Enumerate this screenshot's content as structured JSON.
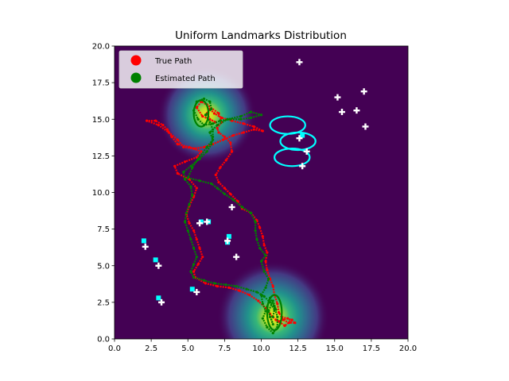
{
  "chart_data": {
    "type": "scatter",
    "title": "Uniform Landmarks Distribution",
    "xlabel": "",
    "ylabel": "",
    "xlim": [
      0,
      20
    ],
    "ylim": [
      0,
      20
    ],
    "xticks": [
      "0.0",
      "2.5",
      "5.0",
      "7.5",
      "10.0",
      "12.5",
      "15.0",
      "17.5",
      "20.0"
    ],
    "yticks": [
      "0.0",
      "2.5",
      "5.0",
      "7.5",
      "10.0",
      "12.5",
      "15.0",
      "17.5",
      "20.0"
    ],
    "grid": false,
    "legend_position": "upper-left",
    "background_color": "#440154",
    "heat_sources": [
      {
        "x": 6.3,
        "y": 15.3,
        "sigma": 1.4
      },
      {
        "x": 10.8,
        "y": 1.5,
        "sigma": 1.6
      }
    ],
    "series": [
      {
        "name": "True Path",
        "color": "#ff0000",
        "points": [
          [
            11.3,
            1.1
          ],
          [
            11.0,
            1.3
          ],
          [
            10.6,
            1.7
          ],
          [
            10.3,
            2.1
          ],
          [
            9.8,
            2.6
          ],
          [
            9.2,
            3.0
          ],
          [
            8.5,
            3.3
          ],
          [
            7.8,
            3.5
          ],
          [
            7.0,
            3.6
          ],
          [
            6.2,
            3.8
          ],
          [
            5.5,
            4.2
          ],
          [
            5.4,
            4.6
          ],
          [
            5.7,
            5.1
          ],
          [
            6.0,
            5.6
          ],
          [
            5.8,
            6.2
          ],
          [
            5.6,
            6.8
          ],
          [
            5.4,
            7.4
          ],
          [
            5.1,
            7.9
          ],
          [
            4.9,
            8.5
          ],
          [
            5.1,
            9.1
          ],
          [
            5.4,
            9.7
          ],
          [
            5.6,
            10.3
          ],
          [
            5.1,
            10.9
          ],
          [
            4.3,
            11.3
          ],
          [
            4.1,
            11.8
          ],
          [
            4.8,
            12.1
          ],
          [
            5.6,
            12.4
          ],
          [
            5.9,
            12.8
          ],
          [
            5.1,
            13.1
          ],
          [
            4.3,
            13.3
          ],
          [
            3.9,
            13.8
          ],
          [
            3.6,
            14.3
          ],
          [
            3.3,
            14.6
          ],
          [
            2.8,
            14.9
          ],
          [
            2.2,
            14.9
          ],
          [
            3.0,
            14.6
          ],
          [
            3.7,
            14.1
          ],
          [
            4.3,
            13.6
          ],
          [
            4.7,
            13.1
          ],
          [
            5.4,
            13.0
          ],
          [
            6.1,
            13.1
          ],
          [
            6.7,
            13.3
          ],
          [
            7.4,
            13.6
          ],
          [
            8.1,
            13.9
          ],
          [
            8.8,
            14.1
          ],
          [
            9.5,
            14.3
          ],
          [
            10.1,
            14.2
          ],
          [
            9.5,
            14.5
          ],
          [
            8.8,
            14.7
          ],
          [
            8.0,
            14.9
          ],
          [
            7.3,
            15.1
          ],
          [
            6.8,
            15.4
          ],
          [
            6.5,
            15.7
          ],
          [
            6.3,
            15.4
          ],
          [
            6.5,
            15.0
          ],
          [
            6.9,
            14.8
          ],
          [
            6.0,
            15.2
          ],
          [
            5.6,
            15.8
          ],
          [
            5.9,
            16.2
          ],
          [
            6.3,
            16.0
          ],
          [
            7.1,
            15.4
          ],
          [
            7.3,
            14.8
          ],
          [
            7.0,
            14.4
          ],
          [
            7.1,
            14.1
          ],
          [
            7.5,
            13.8
          ],
          [
            7.9,
            13.4
          ],
          [
            8.0,
            12.8
          ],
          [
            7.6,
            12.2
          ],
          [
            7.2,
            11.7
          ],
          [
            6.9,
            11.2
          ],
          [
            7.1,
            10.7
          ],
          [
            7.5,
            10.3
          ],
          [
            7.9,
            9.9
          ],
          [
            8.4,
            9.4
          ],
          [
            8.7,
            8.9
          ],
          [
            9.3,
            8.6
          ],
          [
            9.7,
            8.1
          ],
          [
            9.9,
            7.6
          ],
          [
            10.1,
            7.0
          ],
          [
            10.2,
            6.4
          ],
          [
            10.4,
            5.9
          ],
          [
            10.3,
            5.3
          ],
          [
            10.4,
            4.7
          ],
          [
            10.6,
            4.1
          ],
          [
            10.8,
            3.6
          ],
          [
            10.9,
            3.0
          ],
          [
            11.1,
            2.4
          ],
          [
            11.2,
            1.8
          ],
          [
            11.5,
            1.3
          ],
          [
            11.9,
            1.1
          ],
          [
            12.3,
            1.1
          ],
          [
            11.8,
            1.4
          ],
          [
            11.2,
            1.2
          ],
          [
            11.6,
            0.9
          ],
          [
            12.1,
            1.3
          ],
          [
            11.4,
            1.5
          ]
        ]
      },
      {
        "name": "Estimated Path",
        "color": "#008000",
        "points": [
          [
            10.8,
            1.5
          ],
          [
            10.9,
            2.0
          ],
          [
            10.6,
            2.5
          ],
          [
            10.2,
            2.9
          ],
          [
            9.7,
            3.2
          ],
          [
            9.0,
            3.4
          ],
          [
            8.3,
            3.6
          ],
          [
            7.6,
            3.7
          ],
          [
            6.8,
            3.8
          ],
          [
            6.1,
            4.0
          ],
          [
            5.4,
            4.2
          ],
          [
            5.2,
            4.6
          ],
          [
            5.4,
            5.1
          ],
          [
            5.6,
            5.6
          ],
          [
            5.4,
            6.2
          ],
          [
            5.2,
            6.8
          ],
          [
            5.0,
            7.4
          ],
          [
            4.8,
            8.0
          ],
          [
            4.9,
            8.6
          ],
          [
            5.1,
            9.2
          ],
          [
            5.3,
            9.8
          ],
          [
            5.2,
            10.4
          ],
          [
            4.8,
            10.9
          ],
          [
            4.7,
            11.4
          ],
          [
            5.2,
            11.8
          ],
          [
            5.8,
            12.3
          ],
          [
            6.3,
            12.8
          ],
          [
            6.6,
            13.3
          ],
          [
            6.7,
            13.8
          ],
          [
            6.7,
            14.3
          ],
          [
            6.5,
            14.8
          ],
          [
            6.2,
            15.3
          ],
          [
            6.6,
            15.7
          ],
          [
            6.5,
            16.2
          ],
          [
            6.1,
            16.4
          ],
          [
            5.6,
            16.2
          ],
          [
            5.4,
            15.6
          ],
          [
            5.7,
            15.0
          ],
          [
            6.1,
            14.6
          ],
          [
            6.7,
            14.7
          ],
          [
            7.2,
            14.9
          ],
          [
            7.9,
            15.0
          ],
          [
            8.6,
            15.0
          ],
          [
            9.3,
            15.1
          ],
          [
            10.0,
            15.3
          ],
          [
            9.3,
            15.5
          ],
          [
            8.6,
            15.2
          ],
          [
            7.7,
            15.0
          ],
          [
            7.0,
            14.6
          ],
          [
            6.5,
            14.1
          ],
          [
            6.7,
            13.6
          ],
          [
            6.3,
            13.1
          ],
          [
            5.7,
            12.3
          ],
          [
            5.3,
            11.7
          ],
          [
            5.0,
            11.0
          ],
          [
            5.8,
            10.8
          ],
          [
            6.6,
            10.6
          ],
          [
            7.0,
            10.3
          ],
          [
            7.5,
            9.9
          ],
          [
            8.1,
            9.5
          ],
          [
            8.7,
            9.0
          ],
          [
            9.3,
            8.6
          ],
          [
            9.6,
            8.0
          ],
          [
            9.6,
            7.4
          ],
          [
            9.7,
            6.8
          ],
          [
            9.9,
            6.2
          ],
          [
            10.3,
            5.7
          ],
          [
            10.0,
            5.3
          ],
          [
            10.2,
            4.6
          ],
          [
            10.5,
            4.1
          ],
          [
            10.3,
            3.5
          ],
          [
            10.0,
            3.0
          ],
          [
            10.1,
            2.4
          ],
          [
            10.3,
            1.9
          ],
          [
            10.1,
            1.4
          ],
          [
            10.4,
            0.8
          ],
          [
            10.8,
            0.4
          ],
          [
            11.1,
            0.8
          ],
          [
            11.1,
            1.5
          ],
          [
            10.9,
            2.2
          ],
          [
            10.6,
            2.8
          ],
          [
            10.4,
            2.2
          ],
          [
            10.6,
            1.5
          ],
          [
            10.8,
            1.0
          ],
          [
            10.5,
            1.9
          ],
          [
            10.8,
            2.6
          ],
          [
            11.0,
            2.0
          ]
        ]
      }
    ],
    "landmarks_true": [
      [
        12.6,
        18.9
      ],
      [
        15.2,
        16.5
      ],
      [
        15.5,
        15.5
      ],
      [
        16.5,
        15.6
      ],
      [
        17.0,
        16.9
      ],
      [
        17.1,
        14.5
      ],
      [
        12.6,
        13.7
      ],
      [
        13.1,
        12.8
      ],
      [
        12.8,
        11.8
      ],
      [
        8.0,
        9.0
      ],
      [
        6.3,
        8.0
      ],
      [
        5.8,
        7.9
      ],
      [
        7.7,
        6.7
      ],
      [
        8.3,
        5.6
      ],
      [
        2.1,
        6.3
      ],
      [
        3.0,
        5.0
      ],
      [
        3.2,
        2.5
      ],
      [
        5.6,
        3.2
      ]
    ],
    "landmarks_estimated": [
      [
        12.8,
        13.9
      ],
      [
        5.9,
        8.0
      ],
      [
        6.4,
        8.0
      ],
      [
        7.8,
        7.0
      ],
      [
        7.7,
        6.6
      ],
      [
        2.0,
        6.7
      ],
      [
        2.8,
        5.4
      ],
      [
        3.0,
        2.8
      ],
      [
        5.3,
        3.4
      ]
    ],
    "uncertainty_ellipses": [
      {
        "cx": 11.8,
        "cy": 14.6,
        "rx": 1.2,
        "ry": 0.6
      },
      {
        "cx": 12.5,
        "cy": 13.5,
        "rx": 1.2,
        "ry": 0.6
      },
      {
        "cx": 12.1,
        "cy": 12.4,
        "rx": 1.2,
        "ry": 0.6
      },
      {
        "cx": 10.9,
        "cy": 1.8,
        "rx": 0.5,
        "ry": 1.2
      },
      {
        "cx": 5.9,
        "cy": 15.4,
        "rx": 0.5,
        "ry": 0.9
      }
    ],
    "landmark_colors": {
      "true": "#ffffff",
      "estimated": "#00ffff"
    }
  }
}
